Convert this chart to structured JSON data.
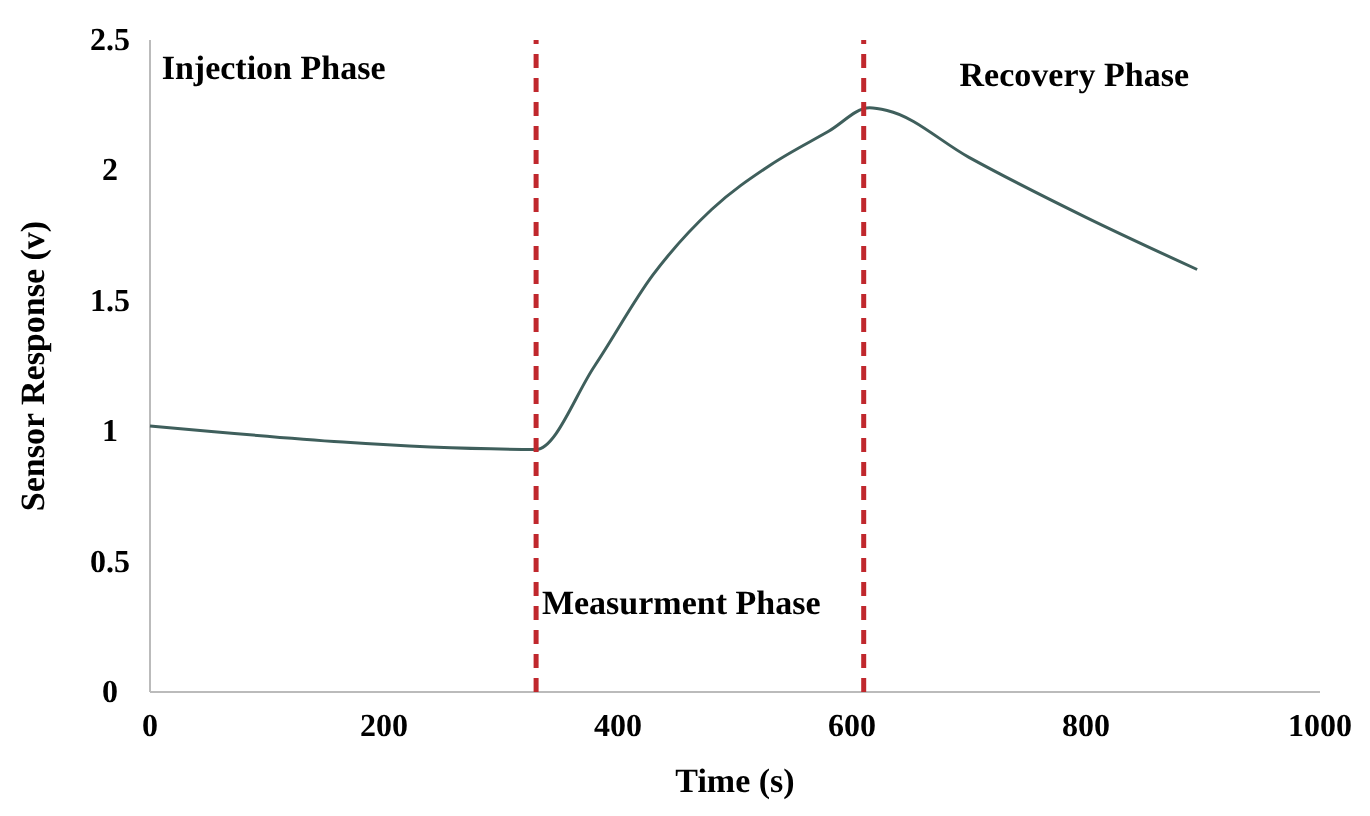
{
  "chart_data": {
    "type": "line",
    "xlabel": "Time (s)",
    "ylabel": "Sensor Response (v)",
    "x": [
      0,
      330,
      380,
      430,
      480,
      530,
      580,
      615,
      630,
      700,
      800,
      895
    ],
    "series": [
      {
        "color": "#3f5f5c",
        "values": [
          1.02,
          0.93,
          1.25,
          1.6,
          1.85,
          2.02,
          2.15,
          2.24,
          2.23,
          2.05,
          1.82,
          1.62
        ]
      }
    ],
    "xlim": [
      0,
      1000
    ],
    "xticks": [
      0,
      200,
      400,
      600,
      800,
      1000
    ],
    "ylim": [
      0,
      2.5
    ],
    "yticks": [
      0,
      0.5,
      1,
      1.5,
      2,
      2.5
    ],
    "ref_lines": [
      {
        "axis": "x",
        "value": 330,
        "color": "#c0282d",
        "line_style": "dashed"
      },
      {
        "axis": "x",
        "value": 610,
        "color": "#c0282d",
        "line_style": "dashed"
      }
    ],
    "annotations": [
      "Injection Phase",
      "Measurment Phase",
      "Recovery Phase"
    ],
    "grid": false,
    "marker": "none",
    "line_style": "solid"
  }
}
